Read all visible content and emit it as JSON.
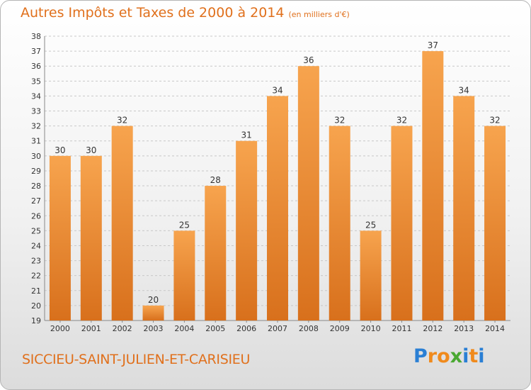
{
  "title": "Autres Impôts et Taxes de 2000 à 2014",
  "unit_note": "(en milliers d'€)",
  "commune": "SICCIEU-SAINT-JULIEN-ET-CARISIEU",
  "logo": {
    "text": "Proxiti",
    "letters": [
      "P",
      "r",
      "o",
      "x",
      "i",
      "t",
      "i"
    ],
    "colors": [
      "#2a7fd4",
      "#f08a1c",
      "#f08a1c",
      "#4aa832",
      "#2a7fd4",
      "#f08a1c",
      "#2a7fd4"
    ]
  },
  "chart_data": {
    "type": "bar",
    "categories": [
      "2000",
      "2001",
      "2002",
      "2003",
      "2004",
      "2005",
      "2006",
      "2007",
      "2008",
      "2009",
      "2010",
      "2011",
      "2012",
      "2013",
      "2014"
    ],
    "values": [
      30,
      30,
      32,
      20,
      25,
      28,
      31,
      34,
      36,
      32,
      25,
      32,
      37,
      34,
      32
    ],
    "ylim": [
      19,
      38
    ],
    "yticks": [
      19,
      20,
      21,
      22,
      23,
      24,
      25,
      26,
      27,
      28,
      29,
      30,
      31,
      32,
      33,
      34,
      35,
      36,
      37,
      38
    ],
    "grid": true,
    "bar_color": "#f0923a"
  }
}
